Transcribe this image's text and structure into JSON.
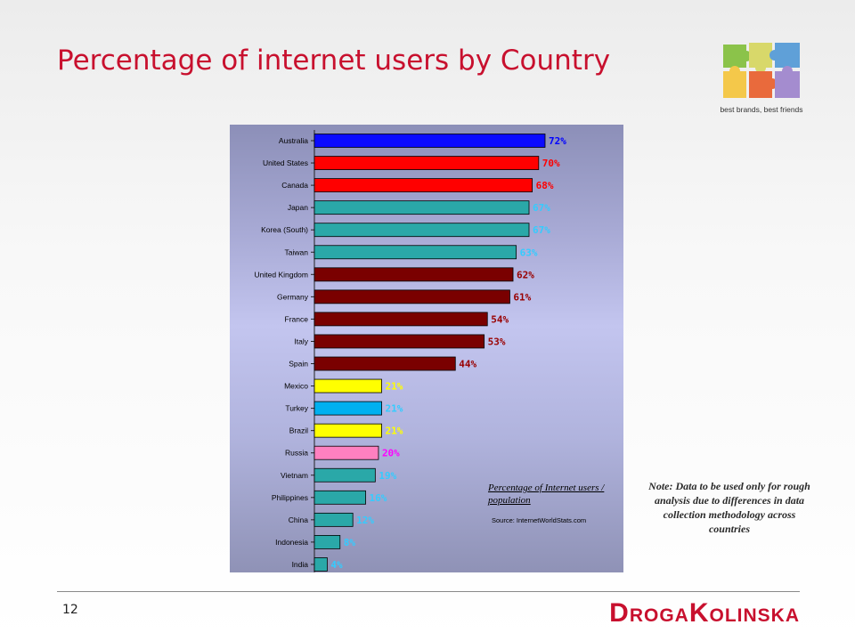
{
  "slide": {
    "title": "Percentage of internet users by Country",
    "page_number": "12",
    "brand": "DrogaKolinska",
    "logo_tagline": "best brands, best friends",
    "note": "Note: Data to be used only for rough analysis due to differences in data collection methodology across countries"
  },
  "legend": {
    "title": "Percentage of Internet users / population",
    "source": "Source: InternetWorldStats.com"
  },
  "colors": {
    "title": "#c8102e",
    "brand": "#c8102e"
  },
  "chart_data": {
    "type": "bar",
    "orientation": "horizontal",
    "categories": [
      "Australia",
      "United States",
      "Canada",
      "Japan",
      "Korea (South)",
      "Taiwan",
      "United Kingdom",
      "Germany",
      "France",
      "Italy",
      "Spain",
      "Mexico",
      "Turkey",
      "Brazil",
      "Russia",
      "Vietnam",
      "Philippines",
      "China",
      "Indonesia",
      "India"
    ],
    "values": [
      72,
      70,
      68,
      67,
      67,
      63,
      62,
      61,
      54,
      53,
      44,
      21,
      21,
      21,
      20,
      19,
      16,
      12,
      8,
      4
    ],
    "labels": [
      "72%",
      "70%",
      "68%",
      "67%",
      "67%",
      "63%",
      "62%",
      "61%",
      "54%",
      "53%",
      "44%",
      "21%",
      "21%",
      "21%",
      "20%",
      "19%",
      "16%",
      "12%",
      "8%",
      "4%"
    ],
    "bar_colors": [
      "#0a0aff",
      "#ff0000",
      "#ff0000",
      "#2aa8a8",
      "#2aa8a8",
      "#2aa8a8",
      "#7a0000",
      "#7a0000",
      "#7a0000",
      "#7a0000",
      "#7a0000",
      "#ffff00",
      "#00b0f0",
      "#ffff00",
      "#ff80c0",
      "#2aa8a8",
      "#2aa8a8",
      "#2aa8a8",
      "#2aa8a8",
      "#2aa8a8"
    ],
    "label_colors": [
      "#0000ff",
      "#ff0000",
      "#ff0000",
      "#33ccff",
      "#33ccff",
      "#33ccff",
      "#990000",
      "#990000",
      "#990000",
      "#990000",
      "#990000",
      "#ffff00",
      "#33ccff",
      "#ffff00",
      "#ff00ff",
      "#33ccff",
      "#33ccff",
      "#33ccff",
      "#33ccff",
      "#33ccff"
    ],
    "xlim": [
      0,
      72
    ],
    "grid": false,
    "legend_position": "bottom-right"
  }
}
